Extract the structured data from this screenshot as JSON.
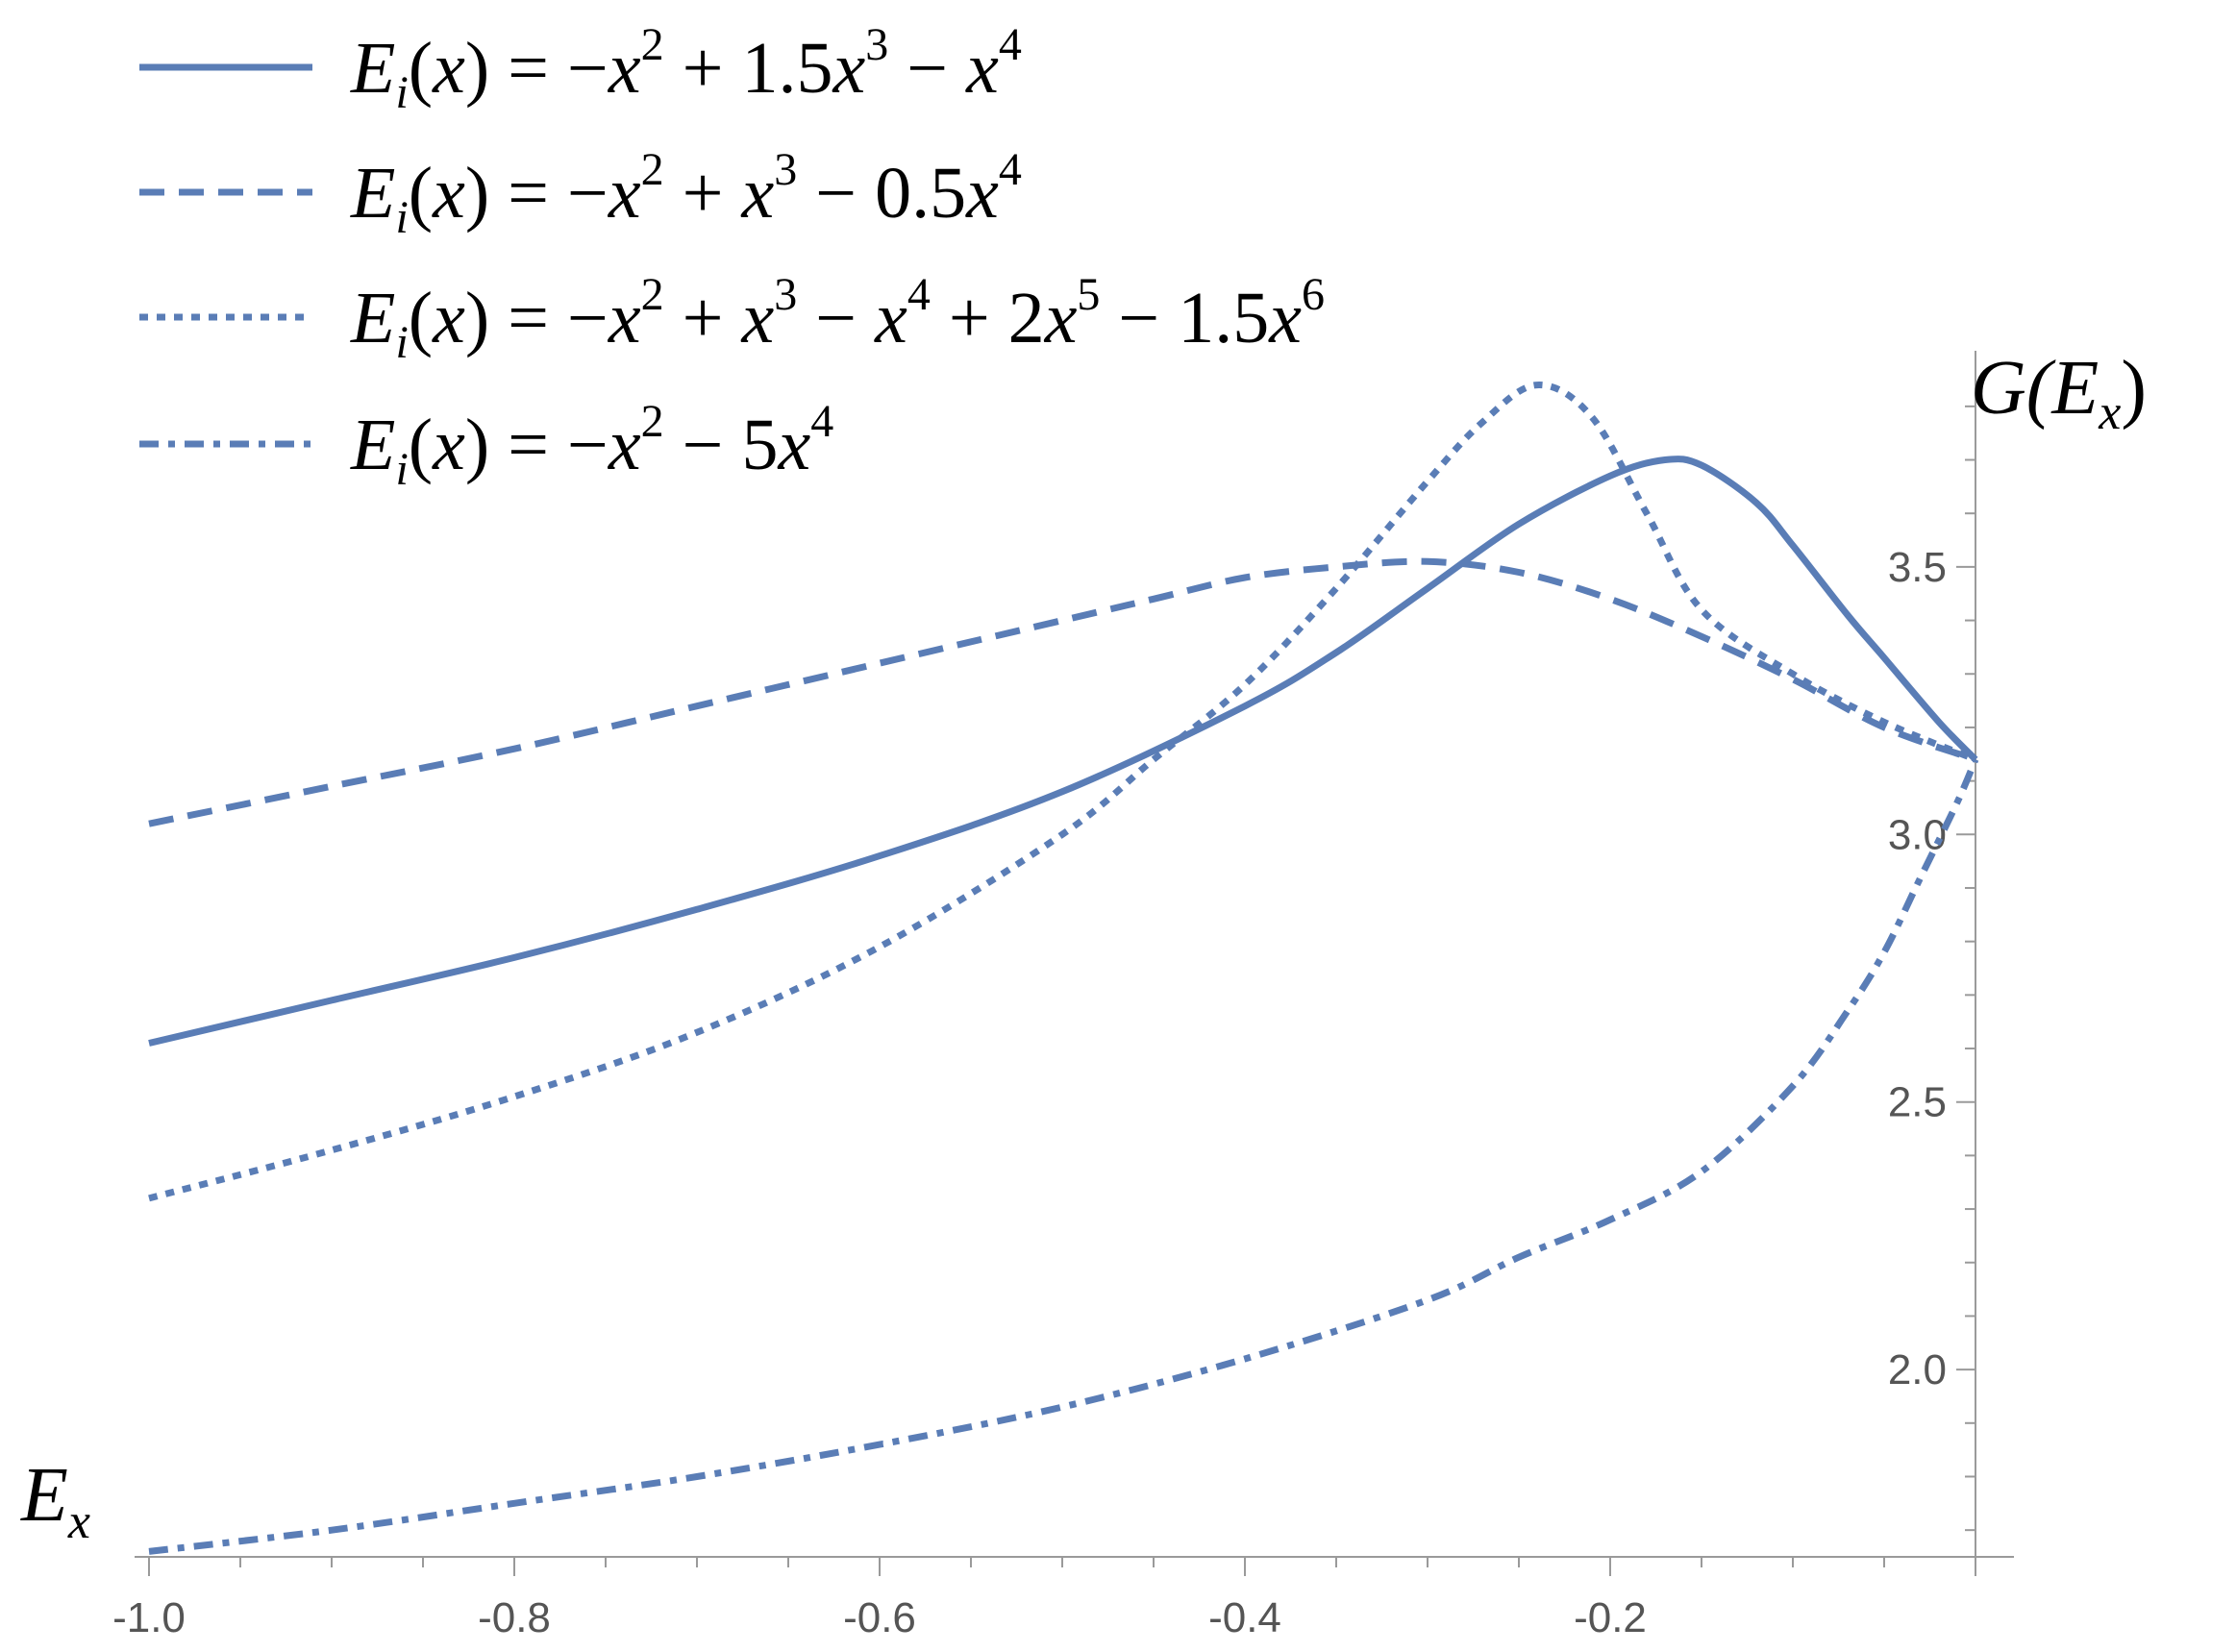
{
  "chart_data": {
    "type": "line",
    "title": "",
    "xlabel": "E_x",
    "ylabel": "G(E_x)",
    "axis_titles": {
      "x": {
        "base": "E",
        "sub": "x"
      },
      "y": {
        "pre": "G(",
        "base": "E",
        "sub": "x",
        "post": ")"
      }
    },
    "xlim": [
      -1.0,
      0.0
    ],
    "ylim": [
      1.65,
      3.85
    ],
    "grid": false,
    "legend_position": "top-left",
    "color": "#5A7DB6",
    "x_ticks": [
      {
        "value": -1.0,
        "label": "-1.0"
      },
      {
        "value": -0.8,
        "label": "-0.8"
      },
      {
        "value": -0.6,
        "label": "-0.6"
      },
      {
        "value": -0.4,
        "label": "-0.4"
      },
      {
        "value": -0.2,
        "label": "-0.2"
      }
    ],
    "y_ticks": [
      {
        "value": 2.0,
        "label": "2.0"
      },
      {
        "value": 2.5,
        "label": "2.5"
      },
      {
        "value": 3.0,
        "label": "3.0"
      },
      {
        "value": 3.5,
        "label": "3.5"
      }
    ],
    "series": [
      {
        "name": "E_i(x) = -x^2 + 1.5x^3 - x^4",
        "style": "solid",
        "legend_parts": [
          {
            "t": "E",
            "k": "it"
          },
          {
            "t": "i",
            "k": "sub"
          },
          {
            "t": "(",
            "k": "n"
          },
          {
            "t": "x",
            "k": "it"
          },
          {
            "t": ") = −",
            "k": "n"
          },
          {
            "t": "x",
            "k": "it"
          },
          {
            "t": "2",
            "k": "sup"
          },
          {
            "t": " + 1.5",
            "k": "n"
          },
          {
            "t": "x",
            "k": "it"
          },
          {
            "t": "3",
            "k": "sup"
          },
          {
            "t": " − ",
            "k": "n"
          },
          {
            "t": "x",
            "k": "it"
          },
          {
            "t": "4",
            "k": "sup"
          }
        ],
        "x": [
          -1.0,
          -0.9,
          -0.8,
          -0.7,
          -0.6,
          -0.5,
          -0.4,
          -0.35,
          -0.3,
          -0.25,
          -0.2,
          -0.17,
          -0.15,
          -0.12,
          -0.1,
          -0.07,
          -0.05,
          -0.02,
          0.0
        ],
        "y": [
          2.61,
          2.69,
          2.77,
          2.86,
          2.96,
          3.08,
          3.24,
          3.34,
          3.46,
          3.58,
          3.67,
          3.7,
          3.69,
          3.62,
          3.54,
          3.41,
          3.33,
          3.21,
          3.14
        ]
      },
      {
        "name": "E_i(x) = -x^2 + x^3 - 0.5x^4",
        "style": "dashed",
        "legend_parts": [
          {
            "t": "E",
            "k": "it"
          },
          {
            "t": "i",
            "k": "sub"
          },
          {
            "t": "(",
            "k": "n"
          },
          {
            "t": "x",
            "k": "it"
          },
          {
            "t": ") = −",
            "k": "n"
          },
          {
            "t": "x",
            "k": "it"
          },
          {
            "t": "2",
            "k": "sup"
          },
          {
            "t": " + ",
            "k": "n"
          },
          {
            "t": "x",
            "k": "it"
          },
          {
            "t": "3",
            "k": "sup"
          },
          {
            "t": " − 0.5",
            "k": "n"
          },
          {
            "t": "x",
            "k": "it"
          },
          {
            "t": "4",
            "k": "sup"
          }
        ],
        "x": [
          -1.0,
          -0.9,
          -0.8,
          -0.7,
          -0.6,
          -0.5,
          -0.45,
          -0.4,
          -0.35,
          -0.3,
          -0.25,
          -0.2,
          -0.15,
          -0.1,
          -0.05,
          0.0
        ],
        "y": [
          3.02,
          3.09,
          3.16,
          3.24,
          3.32,
          3.4,
          3.44,
          3.48,
          3.5,
          3.51,
          3.49,
          3.44,
          3.37,
          3.29,
          3.2,
          3.14
        ]
      },
      {
        "name": "E_i(x) = -x^2 + x^3 - x^4 + 2x^5 - 1.5x^6",
        "style": "dotted",
        "legend_parts": [
          {
            "t": "E",
            "k": "it"
          },
          {
            "t": "i",
            "k": "sub"
          },
          {
            "t": "(",
            "k": "n"
          },
          {
            "t": "x",
            "k": "it"
          },
          {
            "t": ") = −",
            "k": "n"
          },
          {
            "t": "x",
            "k": "it"
          },
          {
            "t": "2",
            "k": "sup"
          },
          {
            "t": " + ",
            "k": "n"
          },
          {
            "t": "x",
            "k": "it"
          },
          {
            "t": "3",
            "k": "sup"
          },
          {
            "t": " − ",
            "k": "n"
          },
          {
            "t": "x",
            "k": "it"
          },
          {
            "t": "4",
            "k": "sup"
          },
          {
            "t": " + 2",
            "k": "n"
          },
          {
            "t": "x",
            "k": "it"
          },
          {
            "t": "5",
            "k": "sup"
          },
          {
            "t": " − 1.5",
            "k": "n"
          },
          {
            "t": "x",
            "k": "it"
          },
          {
            "t": "6",
            "k": "sup"
          }
        ],
        "x": [
          -1.0,
          -0.9,
          -0.8,
          -0.7,
          -0.6,
          -0.5,
          -0.45,
          -0.4,
          -0.35,
          -0.3,
          -0.27,
          -0.24,
          -0.21,
          -0.18,
          -0.15,
          -0.1,
          -0.05,
          0.0
        ],
        "y": [
          2.32,
          2.41,
          2.51,
          2.63,
          2.79,
          3.0,
          3.14,
          3.28,
          3.46,
          3.66,
          3.77,
          3.84,
          3.78,
          3.6,
          3.42,
          3.3,
          3.21,
          3.14
        ]
      },
      {
        "name": "E_i(x) = -x^2 - 5x^4",
        "style": "dashdot",
        "legend_parts": [
          {
            "t": "E",
            "k": "it"
          },
          {
            "t": "i",
            "k": "sub"
          },
          {
            "t": "(",
            "k": "n"
          },
          {
            "t": "x",
            "k": "it"
          },
          {
            "t": ") = −",
            "k": "n"
          },
          {
            "t": "x",
            "k": "it"
          },
          {
            "t": "2",
            "k": "sup"
          },
          {
            "t": " − 5",
            "k": "n"
          },
          {
            "t": "x",
            "k": "it"
          },
          {
            "t": "4",
            "k": "sup"
          }
        ],
        "x": [
          -1.0,
          -0.9,
          -0.8,
          -0.7,
          -0.6,
          -0.5,
          -0.4,
          -0.3,
          -0.25,
          -0.2,
          -0.15,
          -0.1,
          -0.07,
          -0.05,
          -0.03,
          -0.01,
          0.0
        ],
        "y": [
          1.66,
          1.7,
          1.75,
          1.8,
          1.86,
          1.93,
          2.02,
          2.13,
          2.21,
          2.28,
          2.37,
          2.53,
          2.67,
          2.78,
          2.92,
          3.06,
          3.14
        ]
      }
    ]
  }
}
